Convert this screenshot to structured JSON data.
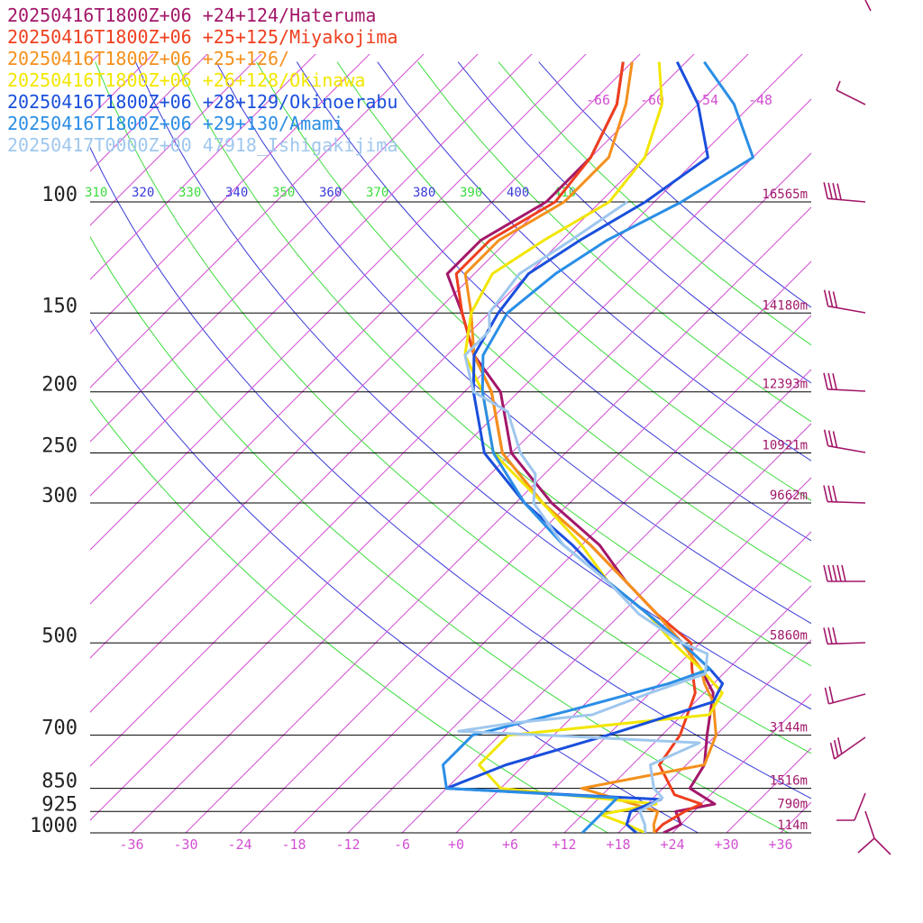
{
  "chart_data": {
    "type": "line",
    "subtype": "skew-t log-p sounding",
    "colors": {
      "isotherm": "#d24fd2",
      "dry_adiabat_blue": "#3b3bd8",
      "dry_adiabat_green": "#3cdc3c",
      "isobar": "#000000",
      "height_label": "#a0186a"
    },
    "pressure_levels": [
      {
        "p": 100,
        "label": "100",
        "height": "16565m"
      },
      {
        "p": 150,
        "label": "150",
        "height": "14180m"
      },
      {
        "p": 200,
        "label": "200",
        "height": "12393m"
      },
      {
        "p": 250,
        "label": "250",
        "height": "10921m"
      },
      {
        "p": 300,
        "label": "300",
        "height": "9662m"
      },
      {
        "p": 500,
        "label": "500",
        "height": "5860m"
      },
      {
        "p": 700,
        "label": "700",
        "height": "3144m"
      },
      {
        "p": 850,
        "label": "850",
        "height": "1516m"
      },
      {
        "p": 925,
        "label": "925",
        "height": "790m"
      },
      {
        "p": 1000,
        "label": "1000",
        "height": "114m"
      }
    ],
    "temperature_ticks": [
      {
        "t": -36,
        "label": "-36"
      },
      {
        "t": -30,
        "label": "-30"
      },
      {
        "t": -24,
        "label": "-24"
      },
      {
        "t": -18,
        "label": "-18"
      },
      {
        "t": -12,
        "label": "-12"
      },
      {
        "t": -6,
        "label": "-6"
      },
      {
        "t": 0,
        "label": "+0"
      },
      {
        "t": 6,
        "label": "+6"
      },
      {
        "t": 12,
        "label": "+12"
      },
      {
        "t": 18,
        "label": "+18"
      },
      {
        "t": 24,
        "label": "+24"
      },
      {
        "t": 30,
        "label": "+30"
      },
      {
        "t": 36,
        "label": "+36"
      }
    ],
    "theta_labels": [
      {
        "label": "310",
        "color": "#3cdc3c"
      },
      {
        "label": "320",
        "color": "#3b3bd8"
      },
      {
        "label": "330",
        "color": "#3cdc3c"
      },
      {
        "label": "340",
        "color": "#3b3bd8"
      },
      {
        "label": "350",
        "color": "#3cdc3c"
      },
      {
        "label": "360",
        "color": "#3b3bd8"
      },
      {
        "label": "370",
        "color": "#3cdc3c"
      },
      {
        "label": "380",
        "color": "#3b3bd8"
      },
      {
        "label": "390",
        "color": "#3cdc3c"
      },
      {
        "label": "400",
        "color": "#3b3bd8"
      },
      {
        "label": "410",
        "color": "#3cdc3c"
      }
    ],
    "upper_labels": [
      "-66",
      "-60",
      "-54",
      "-48"
    ],
    "series": [
      {
        "name": "20250416T1800Z+06 +24+124/Hateruma",
        "color": "#a3176a",
        "points": [
          [
            1000,
            23
          ],
          [
            970,
            24
          ],
          [
            925,
            22
          ],
          [
            900,
            25.5
          ],
          [
            850,
            21
          ],
          [
            780,
            20
          ],
          [
            700,
            17
          ],
          [
            600,
            13
          ],
          [
            550,
            9
          ],
          [
            500,
            4
          ],
          [
            450,
            -2
          ],
          [
            400,
            -9
          ],
          [
            350,
            -16
          ],
          [
            300,
            -26
          ],
          [
            250,
            -36
          ],
          [
            200,
            -44
          ],
          [
            175,
            -51
          ],
          [
            150,
            -57
          ],
          [
            130,
            -63
          ],
          [
            115,
            -63
          ],
          [
            100,
            -60
          ],
          [
            85,
            -60
          ],
          [
            70,
            -63
          ],
          [
            60,
            -67
          ]
        ]
      },
      {
        "name": "20250416T1800Z+06 +25+125/Miyakojima",
        "color": "#ee3f1f",
        "points": [
          [
            1000,
            22
          ],
          [
            970,
            22
          ],
          [
            925,
            23
          ],
          [
            900,
            24
          ],
          [
            870,
            20
          ],
          [
            780,
            15
          ],
          [
            700,
            14
          ],
          [
            600,
            11
          ],
          [
            550,
            8
          ],
          [
            500,
            5
          ],
          [
            450,
            -2
          ],
          [
            400,
            -9
          ],
          [
            350,
            -17
          ],
          [
            300,
            -27
          ],
          [
            250,
            -37
          ],
          [
            200,
            -45
          ],
          [
            175,
            -51
          ],
          [
            150,
            -57
          ],
          [
            130,
            -62
          ],
          [
            115,
            -62
          ],
          [
            100,
            -59
          ],
          [
            85,
            -60
          ],
          [
            70,
            -63
          ],
          [
            60,
            -67
          ]
        ]
      },
      {
        "name": "20250416T1800Z+06 +25+126/",
        "color": "#f4901c",
        "points": [
          [
            1000,
            22
          ],
          [
            970,
            21
          ],
          [
            925,
            20
          ],
          [
            890,
            15
          ],
          [
            850,
            9
          ],
          [
            780,
            20
          ],
          [
            700,
            18
          ],
          [
            620,
            14
          ],
          [
            580,
            11
          ],
          [
            550,
            9
          ],
          [
            500,
            4
          ],
          [
            450,
            -2
          ],
          [
            400,
            -9
          ],
          [
            350,
            -17
          ],
          [
            300,
            -27
          ],
          [
            250,
            -37
          ],
          [
            200,
            -45
          ],
          [
            175,
            -51
          ],
          [
            150,
            -56
          ],
          [
            130,
            -61
          ],
          [
            115,
            -61
          ],
          [
            100,
            -58
          ],
          [
            85,
            -58
          ],
          [
            70,
            -62
          ],
          [
            60,
            -66
          ]
        ]
      },
      {
        "name": "20250416T1800Z+06 +26+128/Okinawa",
        "color": "#f2e600",
        "points": [
          [
            1000,
            21
          ],
          [
            970,
            18
          ],
          [
            935,
            14
          ],
          [
            900,
            19
          ],
          [
            850,
            0
          ],
          [
            780,
            -5
          ],
          [
            700,
            -5
          ],
          [
            650,
            15
          ],
          [
            600,
            14
          ],
          [
            550,
            9
          ],
          [
            500,
            3
          ],
          [
            450,
            -3
          ],
          [
            400,
            -11
          ],
          [
            350,
            -18
          ],
          [
            300,
            -27
          ],
          [
            250,
            -38
          ],
          [
            200,
            -46
          ],
          [
            175,
            -52
          ],
          [
            150,
            -56
          ],
          [
            130,
            -58
          ],
          [
            115,
            -56
          ],
          [
            100,
            -53
          ],
          [
            85,
            -54
          ],
          [
            70,
            -58
          ],
          [
            60,
            -63
          ]
        ]
      },
      {
        "name": "20250416T1800Z+06 +28+129/Okinoerabu",
        "color": "#1a4fdc",
        "points": [
          [
            1000,
            20
          ],
          [
            970,
            18
          ],
          [
            925,
            17
          ],
          [
            885,
            19
          ],
          [
            850,
            -6
          ],
          [
            780,
            -2
          ],
          [
            700,
            6
          ],
          [
            620,
            14
          ],
          [
            580,
            13
          ],
          [
            550,
            10
          ],
          [
            500,
            4
          ],
          [
            450,
            -3
          ],
          [
            400,
            -11
          ],
          [
            350,
            -19
          ],
          [
            300,
            -29
          ],
          [
            250,
            -39
          ],
          [
            200,
            -47
          ],
          [
            175,
            -51
          ],
          [
            150,
            -53
          ],
          [
            130,
            -54
          ],
          [
            115,
            -52
          ],
          [
            100,
            -49
          ],
          [
            85,
            -47
          ],
          [
            70,
            -54
          ],
          [
            60,
            -61
          ]
        ]
      },
      {
        "name": "20250416T1800Z+06 +29+130/Amami",
        "color": "#2a8ee6",
        "points": [
          [
            1000,
            14
          ],
          [
            970,
            14
          ],
          [
            925,
            14
          ],
          [
            880,
            14
          ],
          [
            850,
            -6
          ],
          [
            780,
            -9
          ],
          [
            700,
            -9
          ],
          [
            640,
            -1
          ],
          [
            580,
            7
          ],
          [
            550,
            10
          ],
          [
            500,
            4
          ],
          [
            450,
            -3
          ],
          [
            400,
            -11
          ],
          [
            350,
            -20
          ],
          [
            300,
            -29
          ],
          [
            250,
            -38
          ],
          [
            200,
            -46
          ],
          [
            175,
            -50
          ],
          [
            150,
            -52
          ],
          [
            130,
            -51
          ],
          [
            115,
            -49
          ],
          [
            100,
            -45
          ],
          [
            85,
            -42
          ],
          [
            70,
            -50
          ],
          [
            60,
            -58
          ]
        ]
      },
      {
        "name": "20250417T0000Z+00 47918_Ishigakijima",
        "color": "#9fc7ee",
        "points": [
          [
            1000,
            21
          ],
          [
            970,
            20
          ],
          [
            925,
            18
          ],
          [
            880,
            19
          ],
          [
            850,
            17
          ],
          [
            780,
            14
          ],
          [
            720,
            17
          ],
          [
            700,
            -1
          ],
          [
            690,
            -11
          ],
          [
            670,
            -6
          ],
          [
            650,
            2
          ],
          [
            600,
            6
          ],
          [
            560,
            10
          ],
          [
            520,
            8
          ],
          [
            500,
            4
          ],
          [
            450,
            -4
          ],
          [
            400,
            -11
          ],
          [
            350,
            -20
          ],
          [
            300,
            -28
          ],
          [
            270,
            -31
          ],
          [
            250,
            -35
          ],
          [
            215,
            -41
          ],
          [
            200,
            -47
          ],
          [
            175,
            -52
          ],
          [
            160,
            -52
          ],
          [
            150,
            -54
          ],
          [
            130,
            -55
          ],
          [
            115,
            -53
          ],
          [
            100,
            -51
          ]
        ]
      }
    ]
  }
}
